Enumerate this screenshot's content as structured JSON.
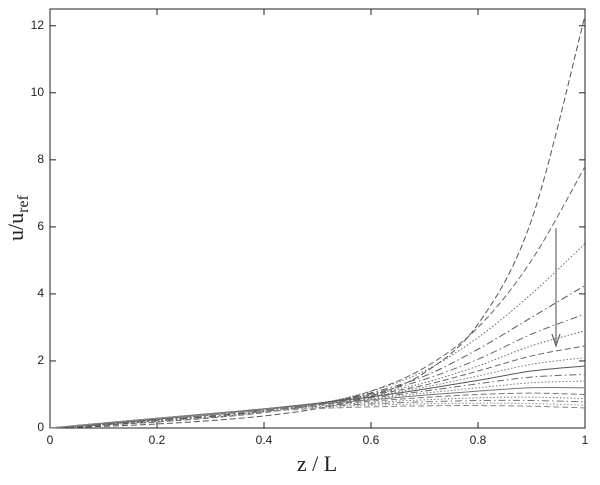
{
  "chart_data": {
    "type": "line",
    "xlabel": "z / L",
    "ylabel": "u/u",
    "ylabel_subscript": "ref",
    "xlim": [
      0,
      1
    ],
    "ylim": [
      0,
      12.5
    ],
    "xticks": [
      0,
      0.2,
      0.4,
      0.6,
      0.8,
      1
    ],
    "yticks": [
      0,
      2,
      4,
      6,
      8,
      10,
      12
    ],
    "x": [
      0,
      0.1,
      0.2,
      0.3,
      0.4,
      0.5,
      0.6,
      0.7,
      0.8,
      0.9,
      1
    ],
    "series": [
      {
        "color": "#555",
        "dash": "dashed",
        "values": [
          0,
          0.05,
          0.12,
          0.22,
          0.36,
          0.58,
          0.95,
          1.65,
          3.1,
          6.2,
          12.3
        ]
      },
      {
        "color": "#666",
        "dash": "dashed",
        "values": [
          0,
          0.08,
          0.18,
          0.3,
          0.46,
          0.7,
          1.1,
          1.8,
          3.0,
          5.0,
          7.8
        ]
      },
      {
        "color": "#666",
        "dash": "dotted",
        "values": [
          0,
          0.09,
          0.2,
          0.32,
          0.48,
          0.72,
          1.1,
          1.7,
          2.7,
          4.0,
          5.5
        ]
      },
      {
        "color": "#555",
        "dash": "dashdot",
        "values": [
          0,
          0.1,
          0.22,
          0.34,
          0.5,
          0.72,
          1.05,
          1.55,
          2.35,
          3.3,
          4.25
        ]
      },
      {
        "color": "#666",
        "dash": "dashdot",
        "values": [
          0,
          0.11,
          0.23,
          0.36,
          0.52,
          0.73,
          1.02,
          1.45,
          2.05,
          2.8,
          3.4
        ]
      },
      {
        "color": "#666",
        "dash": "dotted",
        "values": [
          0,
          0.12,
          0.24,
          0.38,
          0.54,
          0.74,
          1.0,
          1.35,
          1.85,
          2.45,
          2.9
        ]
      },
      {
        "color": "#666",
        "dash": "dashed",
        "values": [
          0,
          0.12,
          0.25,
          0.39,
          0.55,
          0.74,
          0.98,
          1.28,
          1.7,
          2.15,
          2.45
        ]
      },
      {
        "color": "#777",
        "dash": "dotted",
        "values": [
          0,
          0.13,
          0.26,
          0.4,
          0.56,
          0.74,
          0.95,
          1.22,
          1.55,
          1.9,
          2.1
        ]
      },
      {
        "color": "#555",
        "dash": "solid",
        "values": [
          0,
          0.13,
          0.27,
          0.41,
          0.57,
          0.74,
          0.93,
          1.16,
          1.42,
          1.7,
          1.85
        ]
      },
      {
        "color": "#666",
        "dash": "dashdot",
        "values": [
          0,
          0.14,
          0.28,
          0.42,
          0.57,
          0.73,
          0.9,
          1.1,
          1.32,
          1.52,
          1.6
        ]
      },
      {
        "color": "#777",
        "dash": "dotted",
        "values": [
          0,
          0.14,
          0.28,
          0.42,
          0.57,
          0.72,
          0.87,
          1.04,
          1.2,
          1.35,
          1.4
        ]
      },
      {
        "color": "#777",
        "dash": "solid",
        "values": [
          0,
          0.14,
          0.29,
          0.43,
          0.57,
          0.71,
          0.84,
          0.98,
          1.1,
          1.2,
          1.2
        ]
      },
      {
        "color": "#777",
        "dash": "dashed",
        "values": [
          0,
          0.15,
          0.29,
          0.43,
          0.56,
          0.69,
          0.8,
          0.91,
          1.0,
          1.04,
          1.0
        ]
      },
      {
        "color": "#777",
        "dash": "dotted",
        "values": [
          0,
          0.15,
          0.29,
          0.43,
          0.55,
          0.66,
          0.76,
          0.84,
          0.9,
          0.92,
          0.88
        ]
      },
      {
        "color": "#777",
        "dash": "dashdot",
        "values": [
          0,
          0.15,
          0.29,
          0.42,
          0.54,
          0.64,
          0.72,
          0.78,
          0.82,
          0.82,
          0.78
        ]
      },
      {
        "color": "#888",
        "dash": "dotted",
        "values": [
          0,
          0.15,
          0.29,
          0.41,
          0.52,
          0.61,
          0.68,
          0.72,
          0.74,
          0.73,
          0.68
        ]
      },
      {
        "color": "#888",
        "dash": "dashed",
        "values": [
          0,
          0.15,
          0.28,
          0.4,
          0.5,
          0.58,
          0.63,
          0.66,
          0.67,
          0.65,
          0.6
        ]
      }
    ]
  }
}
